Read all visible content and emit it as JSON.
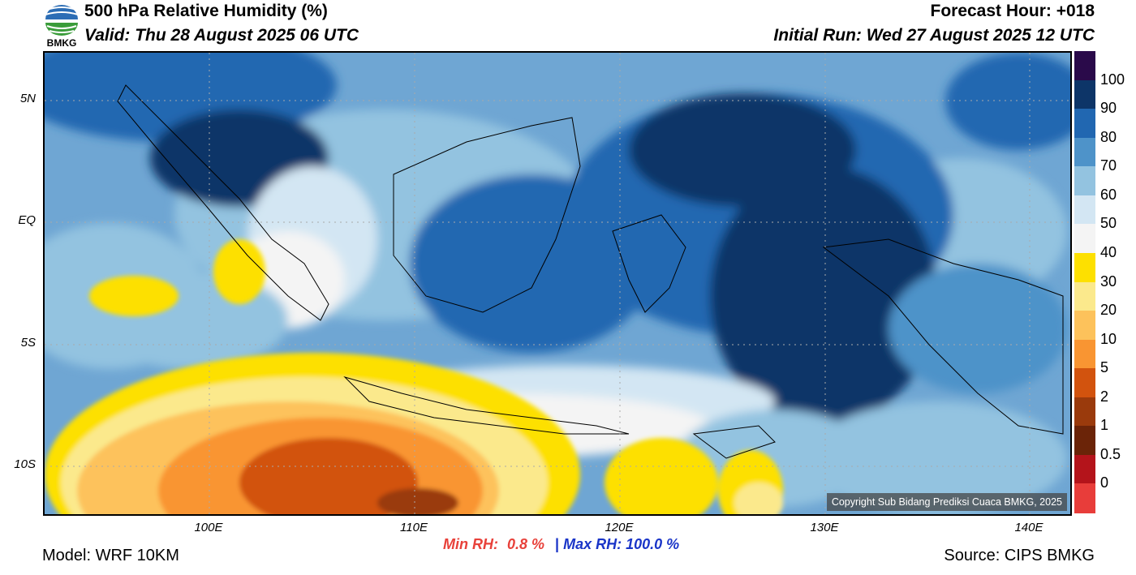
{
  "header": {
    "title": "500 hPa Relative Humidity (%)",
    "valid": "Valid: Thu 28 August 2025 06 UTC",
    "forecast_hour": "Forecast Hour: +018",
    "initial_run": "Initial Run: Wed 27 August 2025 12 UTC",
    "logo_text": "BMKG"
  },
  "map": {
    "lat_labels": [
      "5N",
      "EQ",
      "5S",
      "10S"
    ],
    "lon_labels": [
      "100E",
      "110E",
      "120E",
      "130E",
      "140E"
    ],
    "copyright": "Copyright Sub Bidang Prediksi Cuaca BMKG, 2025"
  },
  "colorbar": {
    "labels": [
      "100",
      "90",
      "80",
      "70",
      "60",
      "50",
      "40",
      "30",
      "20",
      "10",
      "5",
      "2",
      "1",
      "0.5",
      "0"
    ],
    "colors": [
      "#2a0a4a",
      "#0d3568",
      "#2167b1",
      "#4e93c9",
      "#93c3e0",
      "#d3e6f3",
      "#f4f4f4",
      "#fde000",
      "#fbe98c",
      "#fdc25b",
      "#f99532",
      "#d2530e",
      "#9a3a0c",
      "#6b2408",
      "#b4141b",
      "#e83d3a"
    ]
  },
  "stats": {
    "min_label": "Min RH:",
    "min_value": "0.8 %",
    "separator": "|",
    "max_text": "Max RH: 100.0 %"
  },
  "footer": {
    "model": "Model: WRF 10KM",
    "source": "Source: CIPS BMKG"
  }
}
